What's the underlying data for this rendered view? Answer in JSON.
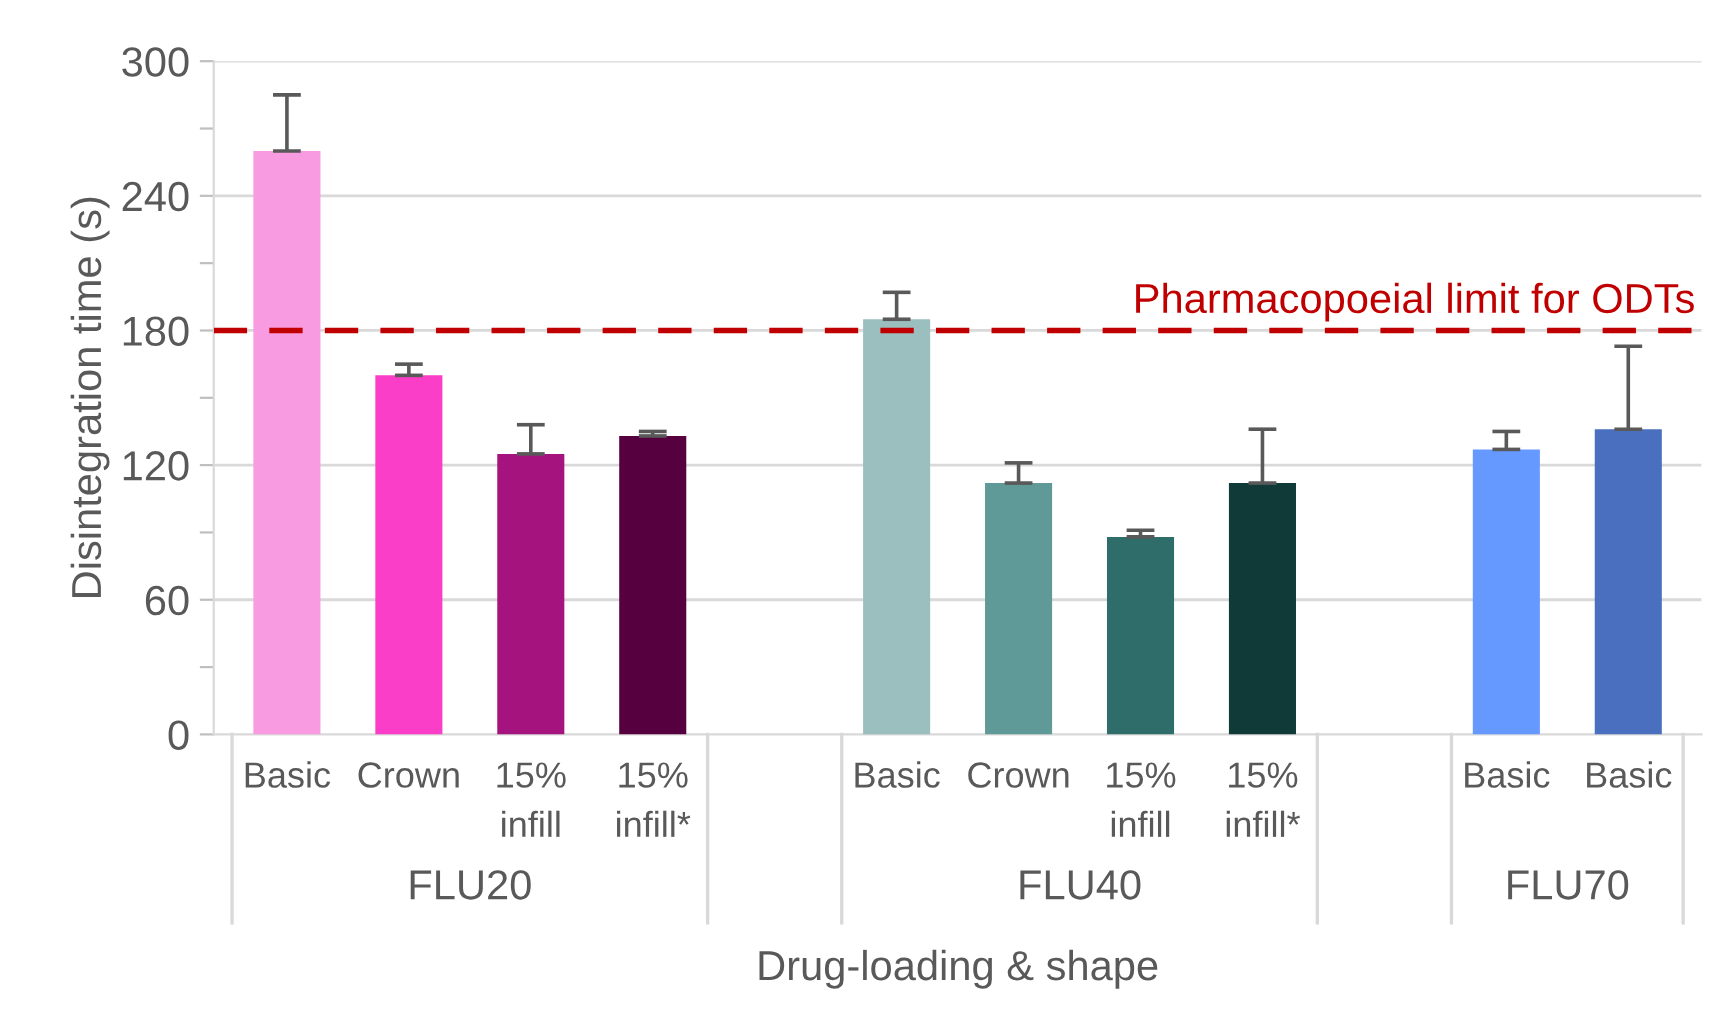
{
  "chart_data": {
    "type": "bar",
    "ylabel": "Disintegration time (s)",
    "xlabel": "Drug-loading & shape",
    "categories": [
      "Basic",
      "Crown",
      "15%\ninfill",
      "15%\ninfill*",
      null,
      "Basic",
      "Crown",
      "15%\ninfill",
      "15%\ninfill*",
      null,
      "Basic",
      "Basic"
    ],
    "values": [
      260,
      160,
      125,
      133,
      null,
      185,
      112,
      88,
      112,
      null,
      127,
      136
    ],
    "colors": [
      "#f99be0",
      "#fb3ec8",
      "#a5137f",
      "#560040",
      "#ffffff",
      "#9bbfbf",
      "#5f9a99",
      "#2f6d6a",
      "#0f3a38",
      "#ffffff",
      "#6699ff",
      "#4a6fbf"
    ],
    "errors": [
      [
        260,
        285
      ],
      [
        160,
        165
      ],
      [
        125,
        138
      ],
      [
        133,
        135
      ],
      null,
      [
        185,
        197
      ],
      [
        112,
        121
      ],
      [
        88,
        91
      ],
      [
        112,
        136
      ],
      null,
      [
        127,
        135
      ],
      [
        136,
        173
      ]
    ],
    "ylim": [
      0,
      300
    ],
    "yticks": [
      0,
      {
        "value": 30,
        "label": null
      },
      60,
      {
        "value": 90,
        "label": null
      },
      120,
      {
        "value": 150,
        "label": null
      },
      180,
      {
        "value": 210,
        "label": null
      },
      240,
      {
        "value": 270,
        "label": null
      },
      300
    ],
    "grid": "y",
    "ref_lines": [
      {
        "axis": "y",
        "value": 180,
        "label": "Pharmacopoeial limit for ODTs",
        "color": "#c00000",
        "line_style": "dashed"
      }
    ],
    "annotations": [
      "FLU20",
      "FLU40",
      "FLU70"
    ]
  }
}
